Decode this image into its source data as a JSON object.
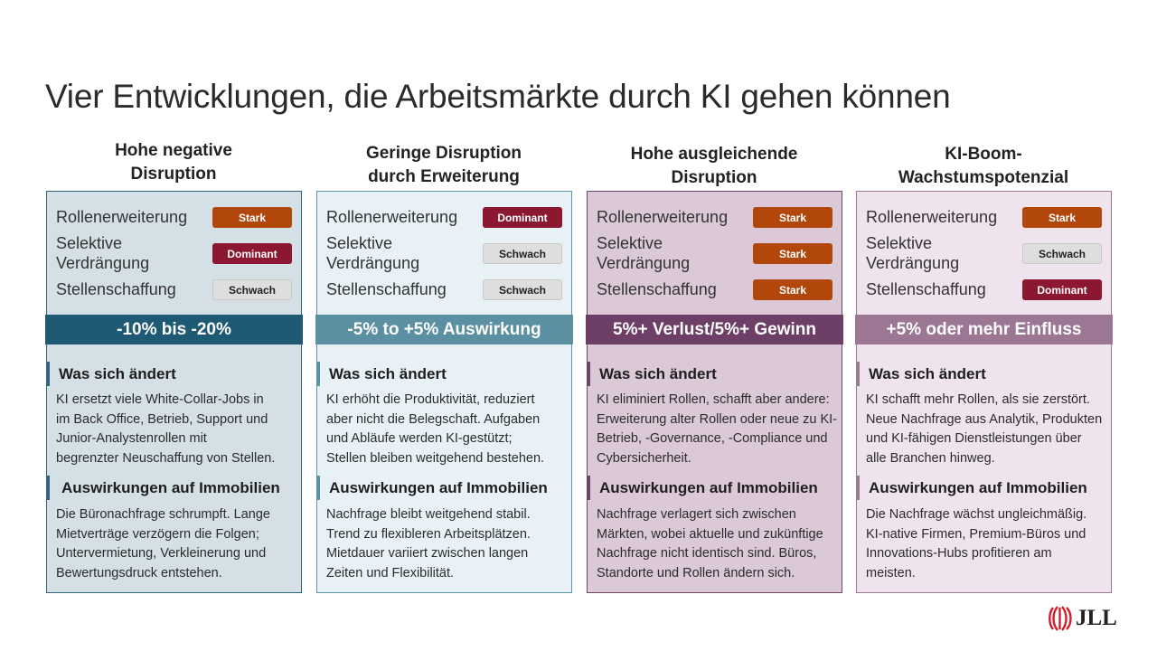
{
  "title": "Vier Entwicklungen, die Arbeitsmärkte durch KI gehen können",
  "labels": {
    "row1": "Rollenerweiterung",
    "row2_line1": "Selektive",
    "row2_line2": "Verdrängung",
    "row3": "Stellenschaffung",
    "what_changes": "Was sich ändert",
    "real_estate": "Auswirkungen auf Immobilien"
  },
  "scenarios": [
    {
      "heading_line1": "Hohe negative",
      "heading_line2": "Disruption",
      "badges": [
        "Stark",
        "Dominant",
        "Schwach"
      ],
      "impact": "-10% bis -20%",
      "what_lines": [
        "KI ersetzt viele White-Collar-Jobs in",
        "im Back Office, Betrieb, Support und",
        "Junior-Analystenrollen mit",
        "begrenzter Neuschaffung von Stellen."
      ],
      "re_lines": [
        "Die Büronachfrage schrumpft. Lange",
        "Mietverträge verzögern die Folgen;",
        "Untervermietung, Verkleinerung und",
        "Bewertungsdruck entstehen."
      ],
      "colors": {
        "bg": "#d5e0e6",
        "border": "#2d6680",
        "band": "#1e5a73"
      }
    },
    {
      "heading_line1": "Geringe Disruption",
      "heading_line2": "durch Erweiterung",
      "badges": [
        "Dominant",
        "Schwach",
        "Schwach"
      ],
      "impact": "-5% to +5% Auswirkung",
      "what_lines": [
        "KI erhöht die Produktivität, reduziert",
        "aber nicht die Belegschaft. Aufgaben",
        "und Abläufe werden KI-gestützt;",
        "Stellen bleiben weitgehend bestehen."
      ],
      "re_lines": [
        "Nachfrage bleibt weitgehend stabil.",
        "Trend zu flexibleren Arbeitsplätzen.",
        "Mietdauer variiert zwischen langen",
        "Zeiten und Flexibilität."
      ],
      "colors": {
        "bg": "#e8f2f6",
        "border": "#5b93a8",
        "band": "#5b8fa2"
      }
    },
    {
      "heading_line1": "Hohe ausgleichende",
      "heading_line2": "Disruption",
      "badges": [
        "Stark",
        "Stark",
        "Stark"
      ],
      "impact": "5%+ Verlust/5%+ Gewinn",
      "what_lines": [
        "KI eliminiert Rollen, schafft aber andere:",
        "Erweiterung alter Rollen oder neue zu KI-",
        "Betrieb, -Governance, -Compliance und",
        "Cybersicherheit."
      ],
      "re_lines": [
        "Nachfrage verlagert sich zwischen",
        "Märkten, wobei aktuelle und zukünftige",
        "Nachfrage nicht identisch sind. Büros,",
        "Standorte und Rollen ändern sich."
      ],
      "colors": {
        "bg": "#dbc9d8",
        "border": "#6f4668",
        "band": "#6e3f66"
      }
    },
    {
      "heading_line1": "KI-Boom-",
      "heading_line2": "Wachstumspotenzial",
      "badges": [
        "Stark",
        "Schwach",
        "Dominant"
      ],
      "impact": "+5% oder mehr Einfluss",
      "what_lines": [
        "KI schafft mehr Rollen, als sie zerstört.",
        "Neue Nachfrage aus Analytik, Produkten",
        "und KI-fähigen Dienstleistungen über",
        "alle Branchen hinweg."
      ],
      "re_lines": [
        "Die Nachfrage wächst ungleichmäßig.",
        "KI-native Firmen, Premium-Büros und",
        "Innovations-Hubs profitieren am",
        "meisten."
      ],
      "colors": {
        "bg": "#efe4ed",
        "border": "#9a7a95",
        "band": "#9c7794"
      }
    }
  ],
  "logo": {
    "text": "JLL",
    "color": "#d21e2b"
  }
}
